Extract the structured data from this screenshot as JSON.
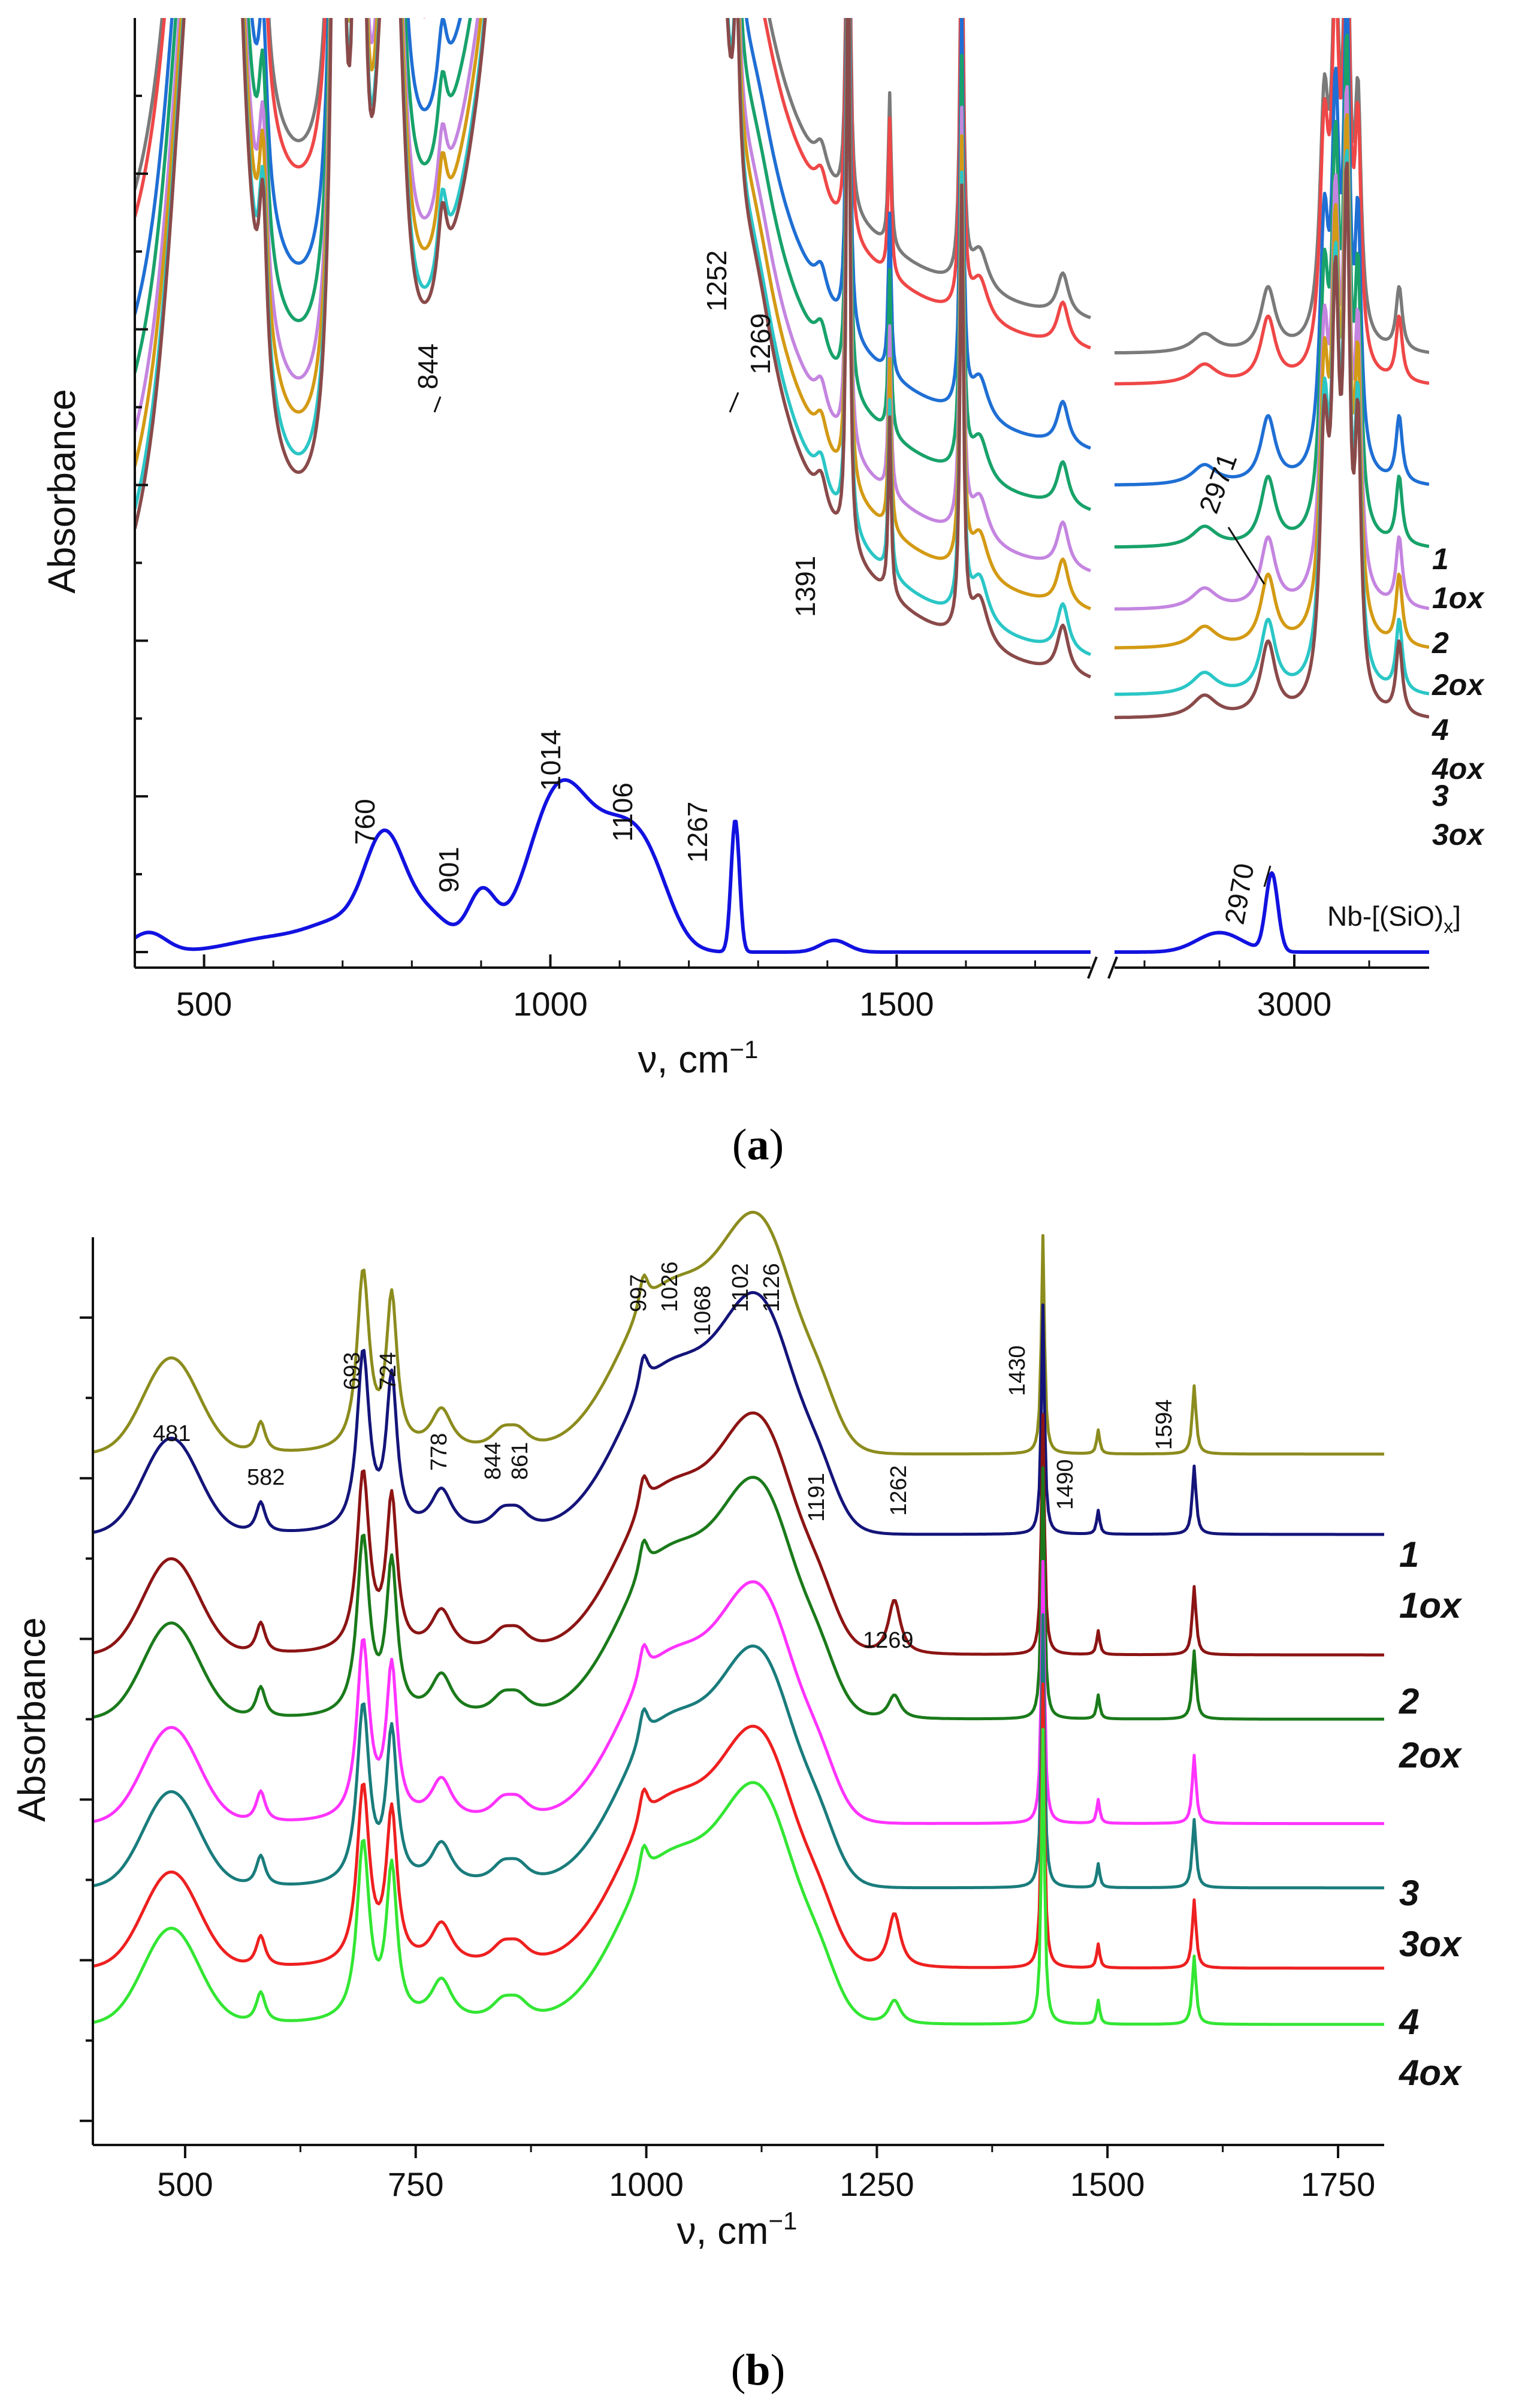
{
  "chart_data": [
    {
      "panel": "a",
      "type": "line",
      "caption_label": "a",
      "xlabel": "ν, cm",
      "xlabel_sup": "−1",
      "ylabel": "Absorbance",
      "segments": [
        {
          "xlim": [
            400,
            1780
          ]
        },
        {
          "xlim": [
            2760,
            3180
          ]
        }
      ],
      "xticks": [
        500,
        1000,
        1500,
        3000
      ],
      "xtick_labels": [
        "500",
        "1000",
        "1500",
        "3000"
      ],
      "ylim": [
        -0.2,
        12
      ],
      "series": [
        {
          "name": "1",
          "color": "#7a7a7a",
          "offset": 7.6,
          "legend": "1"
        },
        {
          "name": "1ox",
          "color": "#ef4747",
          "offset": 7.2,
          "legend": "1ox"
        },
        {
          "name": "2",
          "color": "#1f6fd4",
          "offset": 5.9,
          "legend": "2"
        },
        {
          "name": "2ox",
          "color": "#18a26a",
          "offset": 5.1,
          "legend": "2ox"
        },
        {
          "name": "4",
          "color": "#c485e0",
          "offset": 4.3,
          "legend": "4"
        },
        {
          "name": "4ox",
          "color": "#d39a14",
          "offset": 3.8,
          "legend": "4ox"
        },
        {
          "name": "3",
          "color": "#2bc6c6",
          "offset": 3.2,
          "legend": "3"
        },
        {
          "name": "3ox",
          "color": "#8a4a4a",
          "offset": 2.9,
          "legend": "3ox"
        },
        {
          "name": "Nb-[(SiO)x]",
          "color": "#1212e0",
          "offset": 0.0,
          "legend": "Nb-[(SiO)x]"
        }
      ],
      "reference_label": "Nb-[(SiO)",
      "reference_sub": "x",
      "reference_close": "]",
      "annotations": [
        {
          "text": "844",
          "x": 844
        },
        {
          "text": "1252",
          "x": 1252
        },
        {
          "text": "1269",
          "x": 1269
        },
        {
          "text": "1391",
          "x": 1391
        },
        {
          "text": "2971",
          "x": 2971
        },
        {
          "text": "760",
          "x": 760
        },
        {
          "text": "901",
          "x": 901
        },
        {
          "text": "1014",
          "x": 1014
        },
        {
          "text": "1106",
          "x": 1106
        },
        {
          "text": "1267",
          "x": 1267
        },
        {
          "text": "2970",
          "x": 2970
        }
      ]
    },
    {
      "panel": "b",
      "type": "line",
      "caption_label": "b",
      "xlabel": "ν, cm",
      "xlabel_sup": "−1",
      "ylabel": "Absorbance",
      "xlim": [
        400,
        1800
      ],
      "xticks": [
        500,
        750,
        1000,
        1250,
        1500,
        1750
      ],
      "xtick_labels": [
        "500",
        "750",
        "1000",
        "1250",
        "1500",
        "1750"
      ],
      "ylim": [
        -0.3,
        11
      ],
      "series": [
        {
          "name": "1",
          "color": "#8c8c1e",
          "offset": 8.3,
          "legend": "1"
        },
        {
          "name": "1ox",
          "color": "#14147a",
          "offset": 7.3,
          "legend": "1ox"
        },
        {
          "name": "2",
          "color": "#8c1414",
          "offset": 5.8,
          "legend": "2"
        },
        {
          "name": "2ox",
          "color": "#1a7a1a",
          "offset": 5.0,
          "legend": "2ox"
        },
        {
          "name": "3",
          "color": "#ff33ff",
          "offset": 3.7,
          "legend": "3"
        },
        {
          "name": "3ox",
          "color": "#1a7c7c",
          "offset": 2.9,
          "legend": "3ox"
        },
        {
          "name": "4",
          "color": "#ee2020",
          "offset": 1.9,
          "legend": "4"
        },
        {
          "name": "4ox",
          "color": "#33e633",
          "offset": 1.2,
          "legend": "4ox"
        }
      ],
      "annotations": [
        {
          "text": "481",
          "x": 481
        },
        {
          "text": "582",
          "x": 582
        },
        {
          "text": "693",
          "x": 693
        },
        {
          "text": "724",
          "x": 724
        },
        {
          "text": "778",
          "x": 778
        },
        {
          "text": "844",
          "x": 844
        },
        {
          "text": "861",
          "x": 861
        },
        {
          "text": "997",
          "x": 997
        },
        {
          "text": "1026",
          "x": 1026
        },
        {
          "text": "1068",
          "x": 1068
        },
        {
          "text": "1102",
          "x": 1102
        },
        {
          "text": "1126",
          "x": 1126
        },
        {
          "text": "1191",
          "x": 1191
        },
        {
          "text": "1262",
          "x": 1262
        },
        {
          "text": "1269",
          "x": 1269
        },
        {
          "text": "1430",
          "x": 1430
        },
        {
          "text": "1490",
          "x": 1490
        },
        {
          "text": "1594",
          "x": 1594
        }
      ]
    }
  ]
}
